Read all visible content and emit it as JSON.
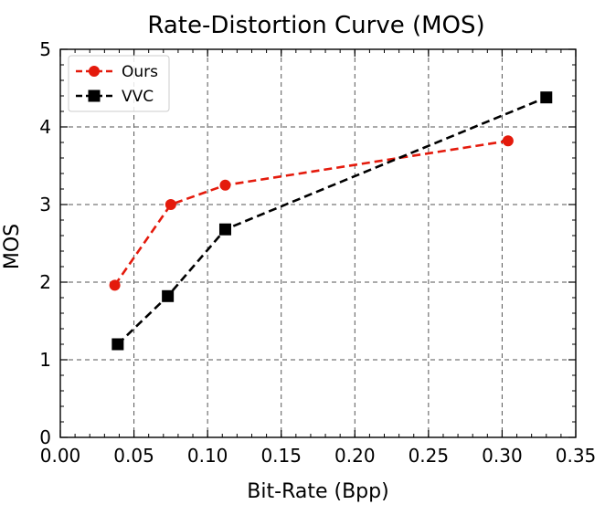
{
  "chart_data": {
    "type": "line",
    "title": "Rate-Distortion Curve (MOS)",
    "xlabel": "Bit-Rate (Bpp)",
    "ylabel": "MOS",
    "xlim": [
      0.0,
      0.35
    ],
    "ylim": [
      0,
      5
    ],
    "x_ticks": [
      "0.00",
      "0.05",
      "0.10",
      "0.15",
      "0.20",
      "0.25",
      "0.30",
      "0.35"
    ],
    "y_ticks": [
      "0",
      "1",
      "2",
      "3",
      "4",
      "5"
    ],
    "grid": true,
    "grid_style": "dashed",
    "legend_position": "top-left",
    "series": [
      {
        "name": "Ours",
        "color": "#e41a0c",
        "marker": "circle",
        "line_style": "dashed",
        "points": [
          {
            "x": 0.037,
            "y": 1.96
          },
          {
            "x": 0.075,
            "y": 3.0
          },
          {
            "x": 0.112,
            "y": 3.25
          },
          {
            "x": 0.304,
            "y": 3.82
          }
        ]
      },
      {
        "name": "VVC",
        "color": "#000000",
        "marker": "square",
        "line_style": "dashed",
        "points": [
          {
            "x": 0.039,
            "y": 1.2
          },
          {
            "x": 0.073,
            "y": 1.82
          },
          {
            "x": 0.112,
            "y": 2.68
          },
          {
            "x": 0.33,
            "y": 4.38
          }
        ]
      }
    ]
  }
}
